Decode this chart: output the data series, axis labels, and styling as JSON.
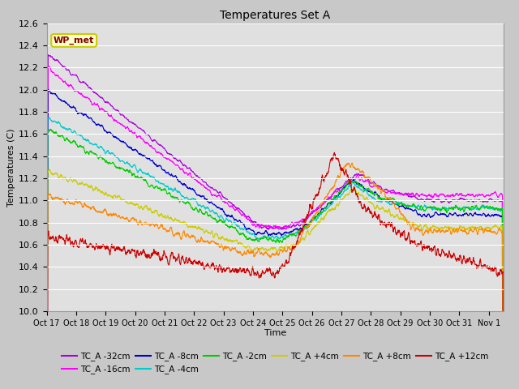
{
  "title": "Temperatures Set A",
  "xlabel": "Time",
  "ylabel": "Temperatures (C)",
  "ylim": [
    10.0,
    12.6
  ],
  "yticks": [
    10.0,
    10.2,
    10.4,
    10.6,
    10.8,
    11.0,
    11.2,
    11.4,
    11.6,
    11.8,
    12.0,
    12.2,
    12.4,
    12.6
  ],
  "x_tick_labels": [
    "Oct 17",
    "Oct 18",
    "Oct 19",
    "Oct 20",
    "Oct 21",
    "Oct 22",
    "Oct 23",
    "Oct 24",
    "Oct 25",
    "Oct 26",
    "Oct 27",
    "Oct 28",
    "Oct 29",
    "Oct 30",
    "Oct 31",
    "Nov 1"
  ],
  "fig_bg_color": "#c8c8c8",
  "plot_bg_color": "#e0e0e0",
  "series": [
    {
      "label": "TC_A -32cm",
      "color": "#aa00dd"
    },
    {
      "label": "TC_A -16cm",
      "color": "#ff00ff"
    },
    {
      "label": "TC_A -8cm",
      "color": "#0000cc"
    },
    {
      "label": "TC_A -4cm",
      "color": "#00cccc"
    },
    {
      "label": "TC_A -2cm",
      "color": "#00cc00"
    },
    {
      "label": "TC_A +4cm",
      "color": "#cccc00"
    },
    {
      "label": "TC_A +8cm",
      "color": "#ff8800"
    },
    {
      "label": "TC_A +12cm",
      "color": "#cc0000"
    }
  ],
  "wp_met_box_color": "#ffffcc",
  "wp_met_text_color": "#800000",
  "wp_met_border_color": "#cccc00",
  "n_days": 15.5,
  "pts_per_day": 144
}
